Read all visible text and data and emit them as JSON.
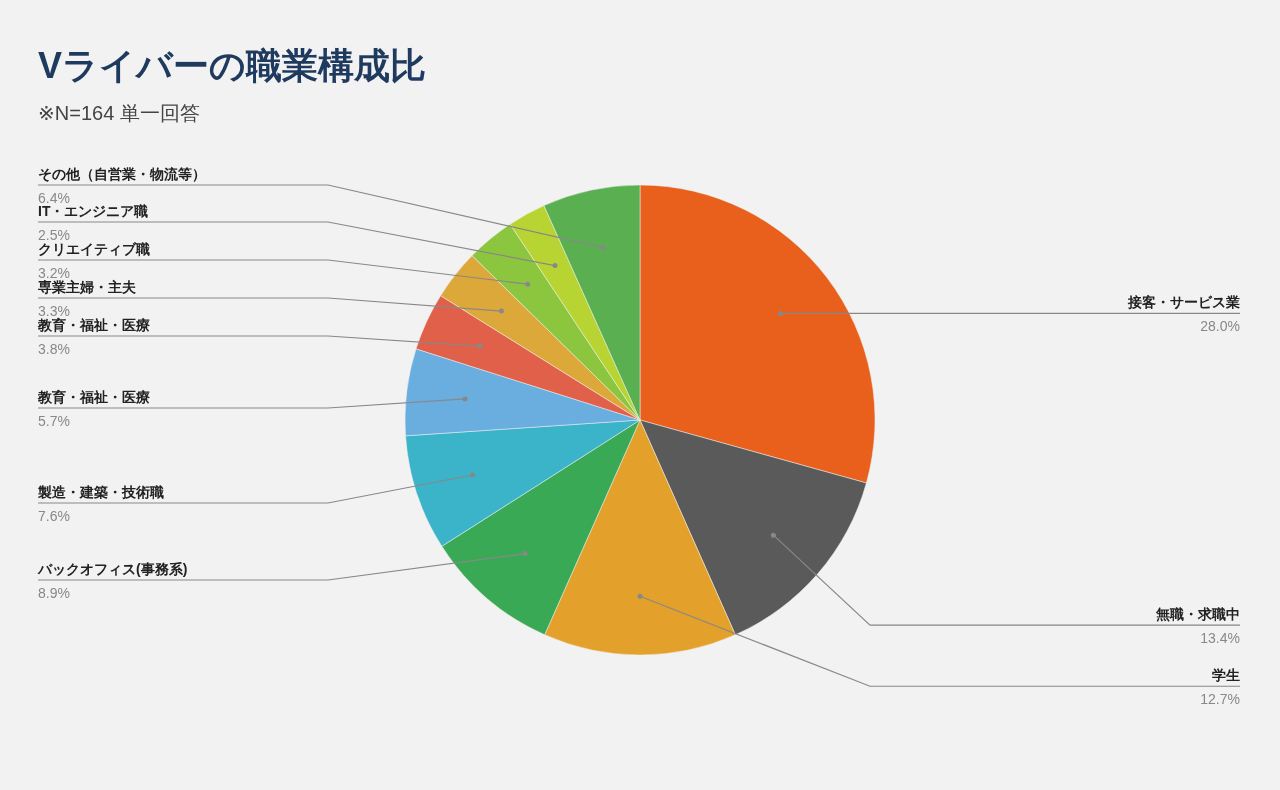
{
  "chart_data": {
    "type": "pie",
    "title": "Vライバーの職業構成比",
    "subtitle": "※N=164 単一回答",
    "categories": [
      "接客・サービス業",
      "無職・求職中",
      "学生",
      "バックオフィス(事務系)",
      "製造・建築・技術職",
      "教育・福祉・医療",
      "教育・福祉・医療",
      "専業主婦・主夫",
      "クリエイティブ職",
      "IT・エンジニア職",
      "その他（自営業・物流等）"
    ],
    "values": [
      28.0,
      13.4,
      12.7,
      8.9,
      7.6,
      5.7,
      3.8,
      3.3,
      3.2,
      2.5,
      6.4
    ],
    "value_labels": [
      "28.0%",
      "13.4%",
      "12.7%",
      "8.9%",
      "7.6%",
      "5.7%",
      "3.8%",
      "3.3%",
      "3.2%",
      "2.5%",
      "6.4%"
    ],
    "colors": [
      "#e8601c",
      "#5a5a5a",
      "#e3a02a",
      "#3aa955",
      "#3bb3c8",
      "#6aaee0",
      "#e0604a",
      "#dca83a",
      "#8cc63f",
      "#b8d432",
      "#5aaf50"
    ],
    "legend": false
  }
}
